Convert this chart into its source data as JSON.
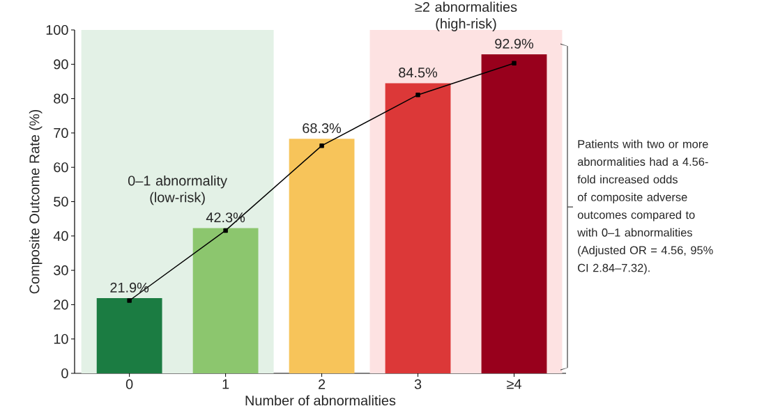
{
  "chart_data": {
    "type": "bar",
    "xlabel": "Number of abnormalities",
    "ylabel": "Composite Outcome Rate (%)",
    "categories": [
      "0",
      "1",
      "2",
      "3",
      "≥4"
    ],
    "series": [
      {
        "colors": [
          "#1b7c42",
          "#8cc66e",
          "#f7c45a",
          "#dc3838",
          "#98001c"
        ],
        "values": [
          21.9,
          42.3,
          68.3,
          84.5,
          92.9
        ],
        "value_labels": [
          "21.9%",
          "42.3%",
          "68.3%",
          "84.5%",
          "92.9%"
        ]
      },
      {
        "type": "line",
        "color": "#000000",
        "marker": "square",
        "values": [
          21.2,
          41.6,
          66.3,
          81.1,
          90.3
        ]
      }
    ],
    "ylim": [
      0,
      100
    ],
    "yticks": [
      0,
      10,
      20,
      30,
      40,
      50,
      60,
      70,
      80,
      90,
      100
    ],
    "bands": [
      {
        "axis": "x",
        "from": "0",
        "to": "1",
        "label": "0–1 abnormality (low-risk)",
        "color": "#e3f1e6"
      },
      {
        "axis": "x",
        "from": "3",
        "to": "≥4",
        "label": "≥2 abnormalities (high-risk)",
        "color": "#fde2e2"
      }
    ],
    "annotations": [
      "Patients with two or more abnormalities had a 4.56-fold increased odds of composite adverse outcomes compared to with 0–1 abnormalities (Adjusted OR = 4.56, 95% CI 2.84–7.32)."
    ]
  }
}
